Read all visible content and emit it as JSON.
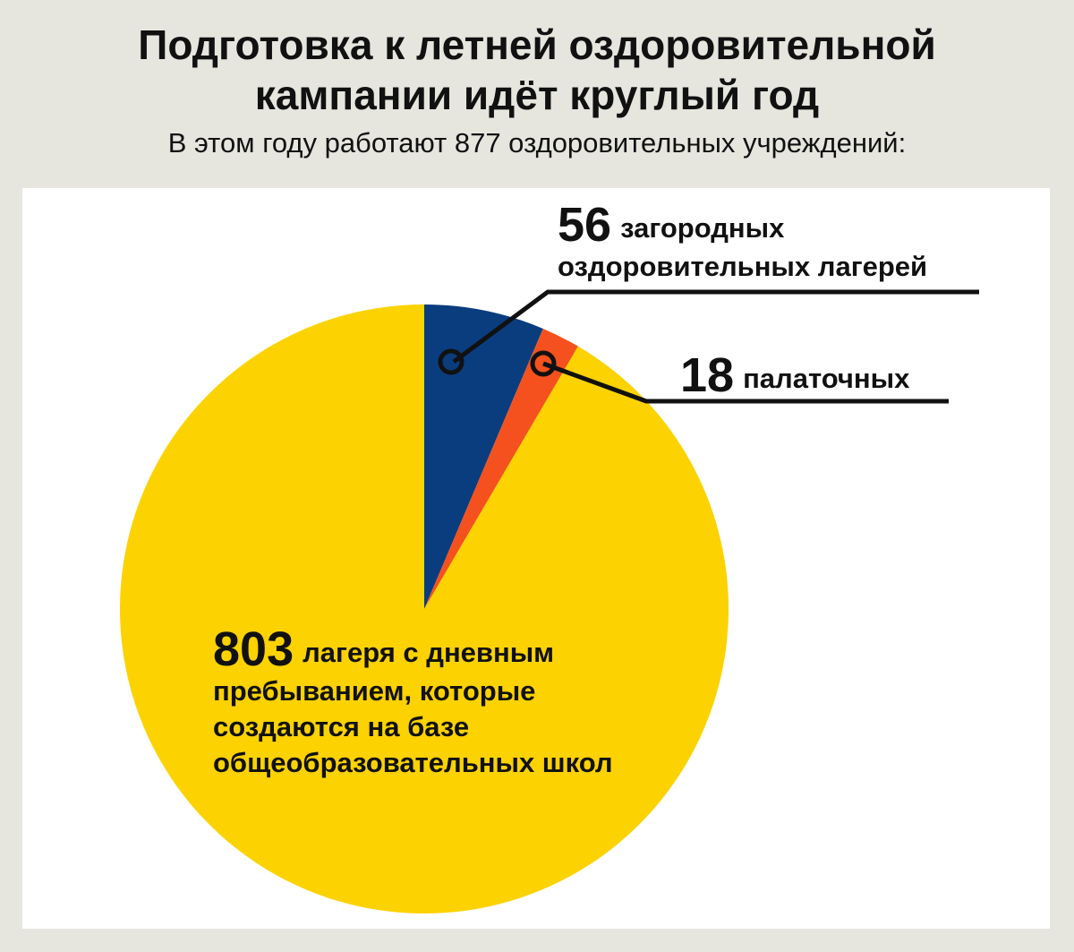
{
  "title_lines": [
    "Подготовка к летней оздоровительной",
    "кампании идёт круглый год"
  ],
  "subtitle": "В этом году работают 877 оздоровительных учреждений:",
  "chart_data": {
    "type": "pie",
    "title": "Подготовка к летней оздоровительной кампании идёт круглый год",
    "subtitle": "В этом году работают 877 оздоровительных учреждений:",
    "total": 877,
    "start": "12 o'clock",
    "direction": "clockwise",
    "slices": [
      {
        "id": "country",
        "value": 56,
        "color": "#0a3d7e",
        "value_label": "56",
        "text_lines": [
          "загородных",
          "оздоровительных лагерей"
        ]
      },
      {
        "id": "tent",
        "value": 18,
        "color": "#f4511e",
        "value_label": "18",
        "text_lines": [
          "палаточных"
        ]
      },
      {
        "id": "day",
        "value": 803,
        "color": "#fcd200",
        "value_label": "803",
        "text_lines": [
          "лагеря с дневным",
          "пребыванием, которые",
          "создаются на базе",
          "общеобразовательных школ"
        ]
      }
    ]
  }
}
